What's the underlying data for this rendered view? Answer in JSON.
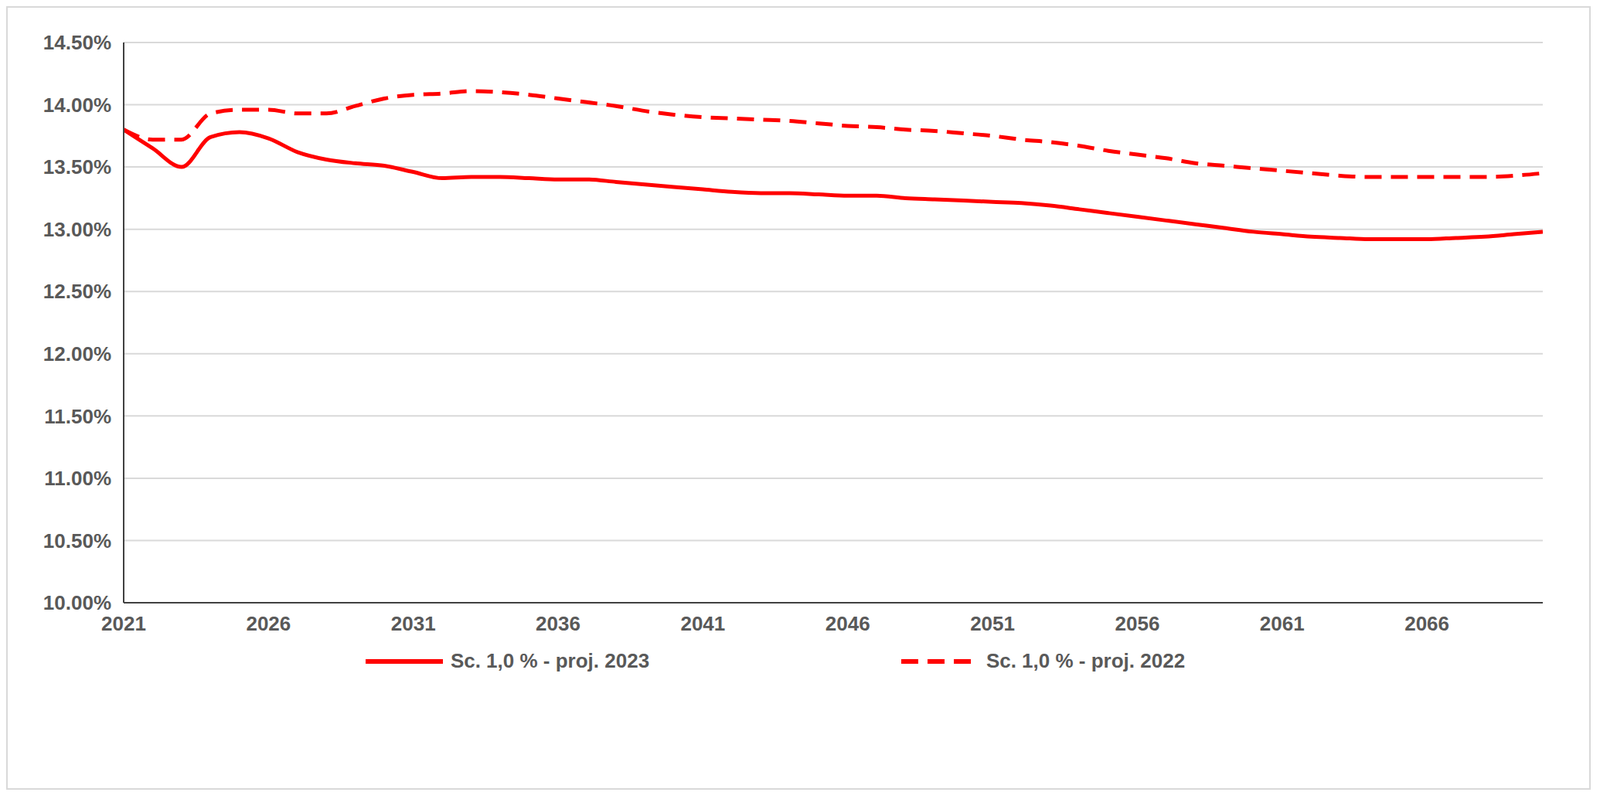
{
  "chart_data": {
    "type": "line",
    "x": [
      2021,
      2022,
      2023,
      2024,
      2025,
      2026,
      2027,
      2028,
      2029,
      2030,
      2031,
      2032,
      2033,
      2034,
      2035,
      2036,
      2037,
      2038,
      2039,
      2040,
      2041,
      2042,
      2043,
      2044,
      2045,
      2046,
      2047,
      2048,
      2049,
      2050,
      2051,
      2052,
      2053,
      2054,
      2055,
      2056,
      2057,
      2058,
      2059,
      2060,
      2061,
      2062,
      2063,
      2064,
      2065,
      2066,
      2067,
      2068,
      2069,
      2070
    ],
    "series": [
      {
        "name": "Sc. 1,0 % - proj. 2023",
        "color": "#ff0000",
        "line_style": "solid",
        "values": [
          13.8,
          13.65,
          13.5,
          13.74,
          13.78,
          13.73,
          13.62,
          13.56,
          13.53,
          13.51,
          13.46,
          13.41,
          13.42,
          13.42,
          13.41,
          13.4,
          13.4,
          13.38,
          13.36,
          13.34,
          13.32,
          13.3,
          13.29,
          13.29,
          13.28,
          13.27,
          13.27,
          13.25,
          13.24,
          13.23,
          13.22,
          13.21,
          13.19,
          13.16,
          13.13,
          13.1,
          13.07,
          13.04,
          13.01,
          12.98,
          12.96,
          12.94,
          12.93,
          12.92,
          12.92,
          12.92,
          12.93,
          12.94,
          12.96,
          12.98
        ]
      },
      {
        "name": "Sc. 1,0 % - proj. 2022",
        "color": "#ff0000",
        "line_style": "dashed",
        "values": [
          13.8,
          13.72,
          13.72,
          13.93,
          13.96,
          13.96,
          13.93,
          13.93,
          13.99,
          14.05,
          14.08,
          14.09,
          14.11,
          14.1,
          14.08,
          14.05,
          14.02,
          13.99,
          13.95,
          13.92,
          13.9,
          13.89,
          13.88,
          13.87,
          13.85,
          13.83,
          13.82,
          13.8,
          13.79,
          13.77,
          13.75,
          13.72,
          13.7,
          13.67,
          13.63,
          13.6,
          13.57,
          13.53,
          13.51,
          13.49,
          13.47,
          13.45,
          13.43,
          13.42,
          13.42,
          13.42,
          13.42,
          13.42,
          13.43,
          13.45
        ]
      }
    ],
    "xlim": [
      2021,
      2070
    ],
    "xticks": [
      2021,
      2026,
      2031,
      2036,
      2041,
      2046,
      2051,
      2056,
      2061,
      2066
    ],
    "ylim": [
      10,
      14.5
    ],
    "yticks": [
      {
        "value": 10,
        "label": "10.00%"
      },
      {
        "value": 10.5,
        "label": "10.50%"
      },
      {
        "value": 11,
        "label": "11.00%"
      },
      {
        "value": 11.5,
        "label": "11.50%"
      },
      {
        "value": 12,
        "label": "12.00%"
      },
      {
        "value": 12.5,
        "label": "12.50%"
      },
      {
        "value": 13,
        "label": "13.00%"
      },
      {
        "value": 13.5,
        "label": "13.50%"
      },
      {
        "value": 14,
        "label": "14.00%"
      },
      {
        "value": 14.5,
        "label": "14.50%"
      }
    ],
    "grid": true,
    "legend": "bottom"
  }
}
